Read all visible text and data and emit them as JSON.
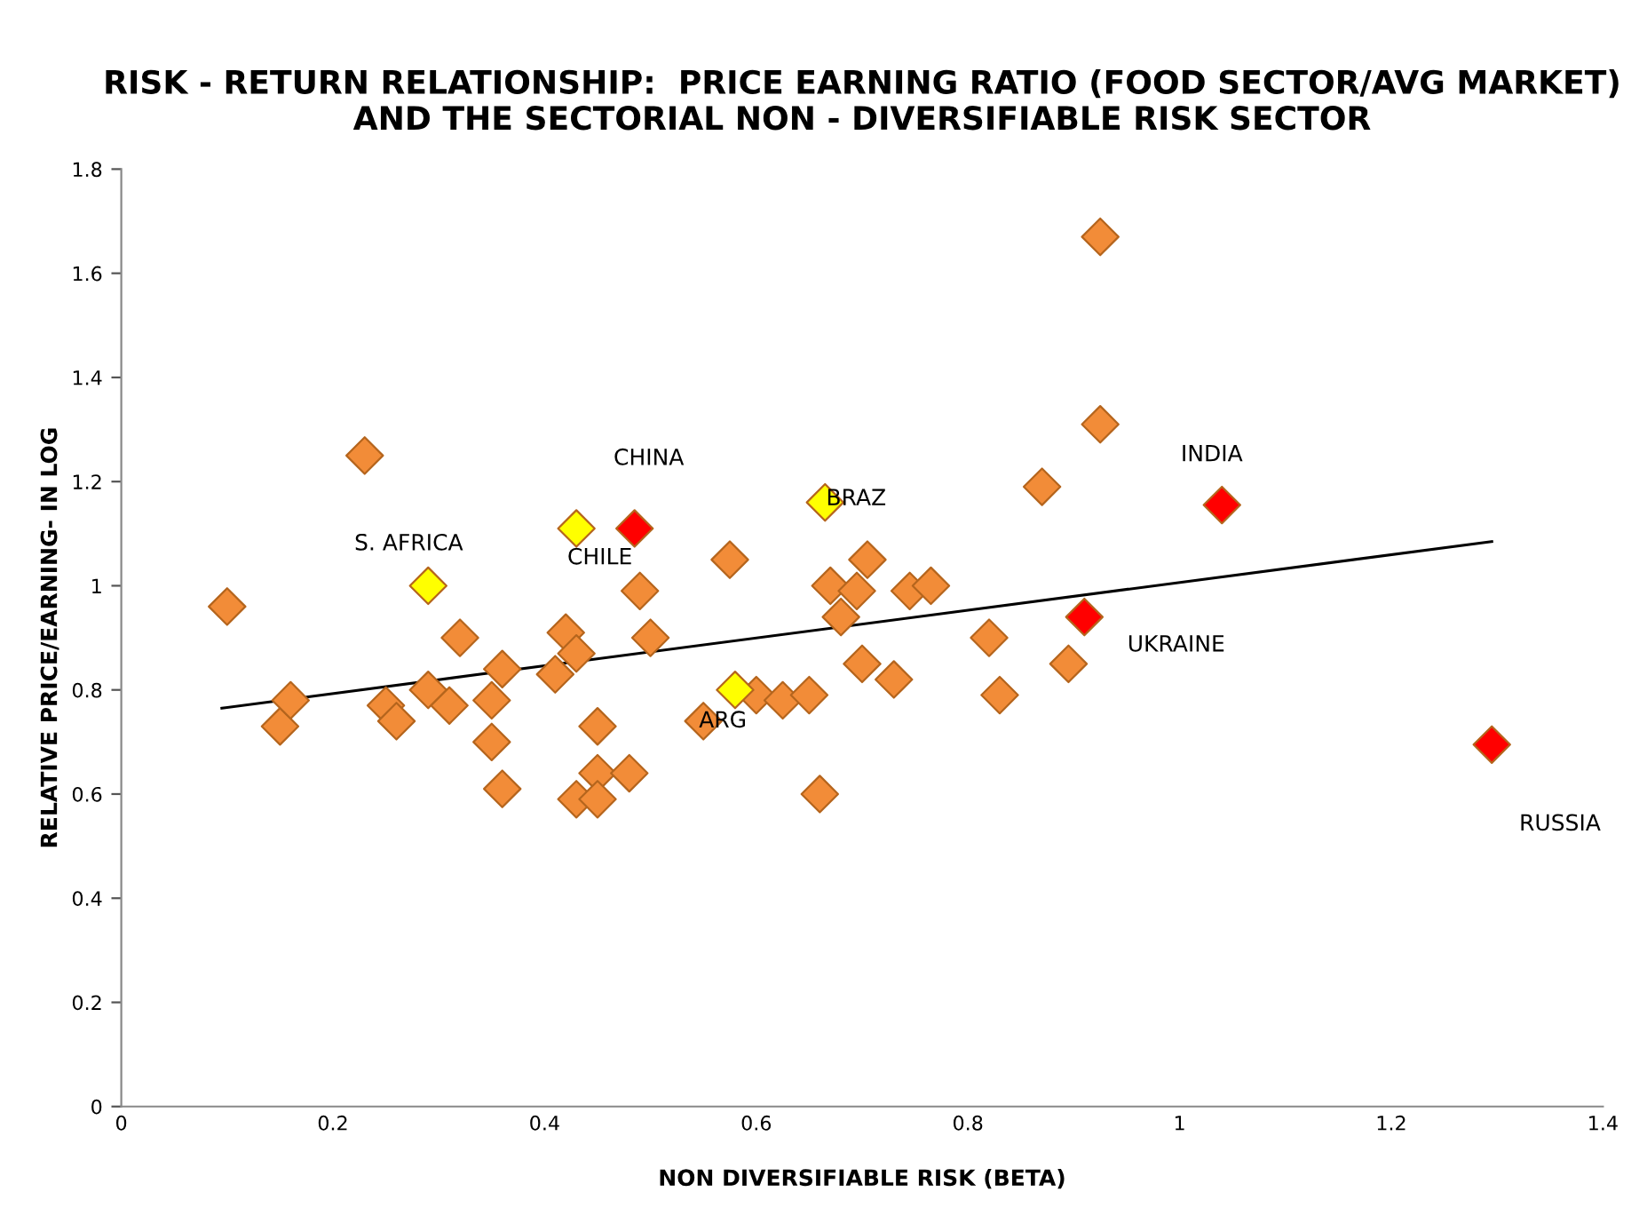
{
  "chart_data": {
    "type": "scatter",
    "title": "RISK - RETURN RELATIONSHIP:  PRICE EARNING RATIO (FOOD SECTOR/AVG MARKET) AND THE SECTORIAL NON - DIVERSIFIABLE RISK SECTOR",
    "xlabel": "NON DIVERSIFIABLE RISK (BETA)",
    "ylabel": "RELATIVE PRICE/EARNING- IN LOG",
    "xlim": [
      0,
      1.4
    ],
    "xticks": [
      0,
      0.2,
      0.4,
      0.6,
      0.8,
      1,
      1.2,
      1.4
    ],
    "ylim": [
      0,
      1.8
    ],
    "yticks": [
      0,
      0.2,
      0.4,
      0.6,
      0.8,
      1,
      1.2,
      1.4,
      1.6,
      1.8
    ],
    "grid": false,
    "legend": false,
    "marker": "diamond",
    "series": [
      {
        "color": "#f28c38",
        "x": [
          0.1,
          0.15,
          0.16,
          0.23,
          0.25,
          0.26,
          0.29,
          0.31,
          0.32,
          0.35,
          0.35,
          0.36,
          0.36,
          0.42,
          0.43,
          0.41,
          0.43,
          0.45,
          0.45,
          0.45,
          0.49,
          0.5,
          0.48,
          0.55,
          0.575,
          0.6,
          0.625,
          0.65,
          0.66,
          0.67,
          0.68,
          0.695,
          0.705,
          0.7,
          0.73,
          0.745,
          0.765,
          0.82,
          0.83,
          0.87,
          0.895,
          0.925,
          0.925
        ],
        "values": [
          0.96,
          0.73,
          0.78,
          1.25,
          0.77,
          0.74,
          0.8,
          0.77,
          0.9,
          0.7,
          0.78,
          0.84,
          0.61,
          0.91,
          0.87,
          0.83,
          0.59,
          0.73,
          0.64,
          0.59,
          0.99,
          0.9,
          0.64,
          0.74,
          1.05,
          0.79,
          0.78,
          0.79,
          0.6,
          1.0,
          0.94,
          0.99,
          1.05,
          0.85,
          0.82,
          0.99,
          1.0,
          0.9,
          0.79,
          1.19,
          0.85,
          1.31,
          1.67
        ]
      },
      {
        "color": "#ffff00",
        "x": [
          0.29,
          0.43,
          0.665,
          0.58
        ],
        "values": [
          1.0,
          1.11,
          1.16,
          0.8
        ]
      },
      {
        "color": "#ff0000",
        "x": [
          0.485,
          1.04,
          0.91,
          1.295
        ],
        "values": [
          1.11,
          1.155,
          0.94,
          0.695
        ]
      },
      {
        "type": "line",
        "color": "#000000",
        "marker": "none",
        "line_style": "solid",
        "x": [
          0.095,
          1.295
        ],
        "values": [
          0.765,
          1.085
        ]
      }
    ],
    "annotations": [
      "CHINA",
      "S. AFRICA",
      "CHILE",
      "BRAZ",
      "ARG",
      "INDIA",
      "UKRAINE",
      "RUSSIA"
    ]
  }
}
